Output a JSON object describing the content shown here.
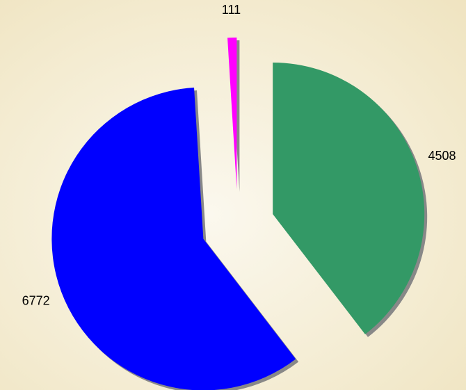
{
  "chart_data": {
    "type": "pie",
    "exploded": true,
    "categories": [
      null,
      null,
      null
    ],
    "values": [
      4508,
      6772,
      111
    ],
    "colors": [
      "#339966",
      "#0000ff",
      "#ff00ff"
    ]
  }
}
